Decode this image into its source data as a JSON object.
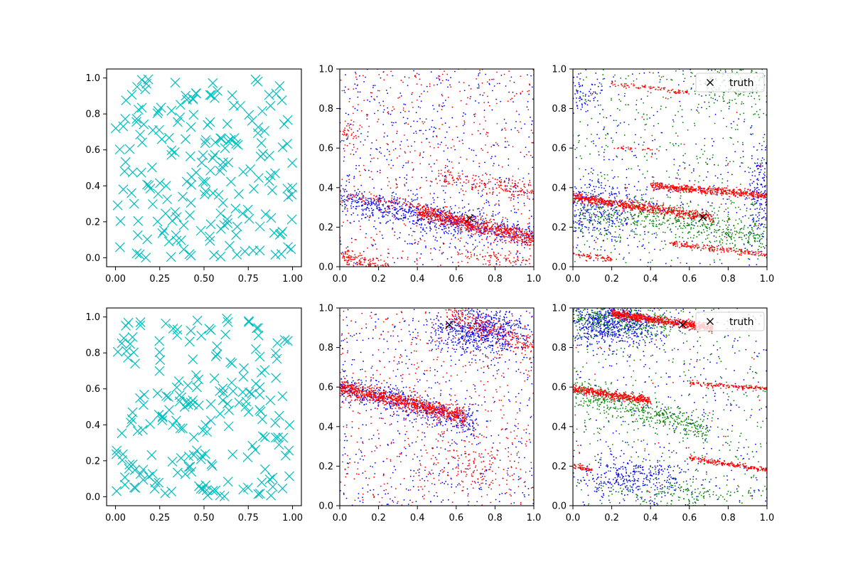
{
  "chart_data": [
    {
      "type": "scatter",
      "panel": "top-left",
      "marker": "x",
      "color": "#00bfbf",
      "xlim": [
        -0.05,
        1.05
      ],
      "ylim": [
        -0.05,
        1.05
      ],
      "xticks": [
        "0.00",
        "0.25",
        "0.50",
        "0.75",
        "1.00"
      ],
      "yticks": [
        "0.0",
        "0.2",
        "0.4",
        "0.6",
        "0.8",
        "1.0"
      ],
      "points_description": "about 200 points uniformly distributed on [0,1]^2",
      "n_points": 200
    },
    {
      "type": "scatter",
      "panel": "top-middle",
      "xlim": [
        0,
        1
      ],
      "ylim": [
        0,
        1
      ],
      "xticks": [
        "0.0",
        "0.2",
        "0.4",
        "0.6",
        "0.8",
        "1.0"
      ],
      "yticks": [
        "0.0",
        "0.2",
        "0.4",
        "0.6",
        "0.8",
        "1.0"
      ],
      "series": [
        {
          "color": "#0000ff",
          "structure": "dense band from (0,0.34) to (1,0.15) plus background noise"
        },
        {
          "color": "#ff0000",
          "structure": "dense band from (0.4,0.28) to (1,0.14); faint band (0.5,0.46)-(1,0.38); clusters near (0,0.03)"
        }
      ],
      "truth": [
        {
          "x": 0.67,
          "y": 0.245
        }
      ]
    },
    {
      "type": "scatter",
      "panel": "top-right",
      "xlim": [
        0,
        1
      ],
      "ylim": [
        0,
        1
      ],
      "xticks": [
        "0.0",
        "0.2",
        "0.4",
        "0.6",
        "0.8",
        "1.0"
      ],
      "yticks": [
        "0.0",
        "0.2",
        "0.4",
        "0.6",
        "0.8",
        "1.0"
      ],
      "series": [
        {
          "color": "#0000ff",
          "structure": "cloud around (0-0.3, 0.15-0.4) and near right edge"
        },
        {
          "color": "#008000",
          "structure": "diffuse band (0.3,0.28)-(1,0.15) and upper-right"
        },
        {
          "color": "#ff0000",
          "structure": "lines (0,0.35)-(0.7,0.25); (0.4,0.41)-(1,0.36); (0.5,0.12)-(1,0.06); (0,0.06)-(0.2,0.04); (0.2,0.93)-(0.6,0.88)"
        }
      ],
      "truth": [
        {
          "x": 0.67,
          "y": 0.25
        }
      ],
      "legend": {
        "label": "truth",
        "location": "top-right"
      }
    },
    {
      "type": "scatter",
      "panel": "bottom-left",
      "marker": "x",
      "color": "#00bfbf",
      "xlim": [
        -0.05,
        1.05
      ],
      "ylim": [
        -0.05,
        1.05
      ],
      "xticks": [
        "0.00",
        "0.25",
        "0.50",
        "0.75",
        "1.00"
      ],
      "yticks": [
        "0.0",
        "0.2",
        "0.4",
        "0.6",
        "0.8",
        "1.0"
      ],
      "points_description": "about 200 points uniformly distributed on [0,1]^2",
      "n_points": 200
    },
    {
      "type": "scatter",
      "panel": "bottom-middle",
      "xlim": [
        0,
        1
      ],
      "ylim": [
        0,
        1
      ],
      "xticks": [
        "0.0",
        "0.2",
        "0.4",
        "0.6",
        "0.8",
        "1.0"
      ],
      "yticks": [
        "0.0",
        "0.2",
        "0.4",
        "0.6",
        "0.8",
        "1.0"
      ],
      "series": [
        {
          "color": "#0000ff",
          "structure": "band (0,0.6)-(0.7,0.42); cluster near (0.55,0.95)-(0.9,0.8); noise"
        },
        {
          "color": "#ff0000",
          "structure": "dense band (0,0.6)-(0.65,0.45); background noise"
        }
      ],
      "truth": [
        {
          "x": 0.565,
          "y": 0.915
        }
      ]
    },
    {
      "type": "scatter",
      "panel": "bottom-right",
      "xlim": [
        0,
        1
      ],
      "ylim": [
        0,
        1
      ],
      "xticks": [
        "0.0",
        "0.2",
        "0.4",
        "0.6",
        "0.8",
        "1.0"
      ],
      "yticks": [
        "0.0",
        "0.2",
        "0.4",
        "0.6",
        "0.8",
        "1.0"
      ],
      "series": [
        {
          "color": "#0000ff",
          "structure": "cluster (0-0.6, 0.8-1.0); cluster (0.1-0.5, 0.1-0.2)"
        },
        {
          "color": "#008000",
          "structure": "band (0,0.58)-(0.7,0.35); cluster upper-left; lower cluster"
        },
        {
          "color": "#ff0000",
          "structure": "lines (0.2,0.97)-(0.7,0.9); (0,0.59)-(0.4,0.53); (0.6,0.62)-(1,0.59); (0.6,0.24)-(1,0.18); (0,0.2)-(0.1,0.18)"
        }
      ],
      "truth": [
        {
          "x": 0.565,
          "y": 0.915
        }
      ],
      "legend": {
        "label": "truth",
        "location": "top-right"
      }
    }
  ]
}
